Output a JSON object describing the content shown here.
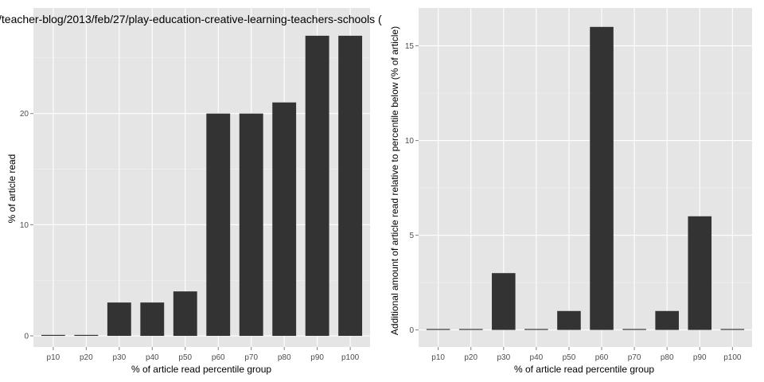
{
  "chart_data": [
    {
      "type": "bar",
      "title": "/teacher-blog/2013/feb/27/play-education-creative-learning-teachers-schools (",
      "xlabel": "% of article read percentile group",
      "ylabel": "% of article read",
      "categories": [
        "p10",
        "p20",
        "p30",
        "p40",
        "p50",
        "p60",
        "p70",
        "p80",
        "p90",
        "p100"
      ],
      "values": [
        0,
        0,
        3,
        3,
        4,
        20,
        20,
        21,
        27,
        27
      ],
      "ylim": [
        -1,
        29.5
      ],
      "yticks": [
        0,
        10,
        20
      ],
      "grid": true
    },
    {
      "type": "bar",
      "title": "",
      "xlabel": "% of article read percentile group",
      "ylabel": "Additional amount of article read relative to percentile below (% of article)",
      "categories": [
        "p10",
        "p20",
        "p30",
        "p40",
        "p50",
        "p60",
        "p70",
        "p80",
        "p90",
        "p100"
      ],
      "values": [
        0,
        0,
        3,
        0,
        1,
        16,
        0,
        1,
        6,
        0
      ],
      "ylim": [
        -0.9,
        17
      ],
      "yticks": [
        0,
        5,
        10,
        15
      ],
      "grid": true
    }
  ]
}
